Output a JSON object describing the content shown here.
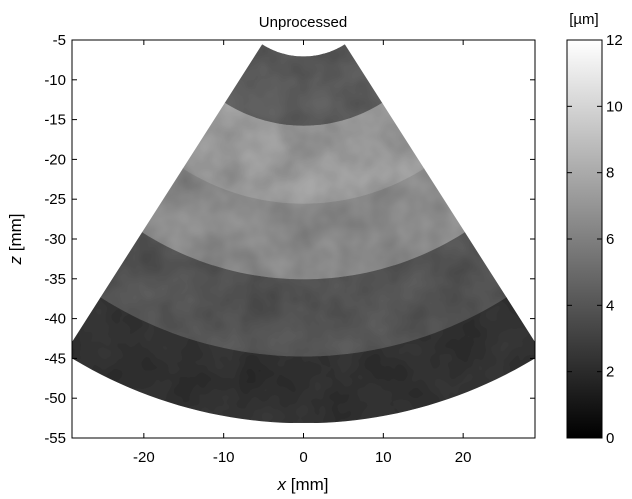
{
  "chart_data": {
    "type": "heatmap",
    "title": "Unprocessed",
    "xlabel_var": "x",
    "xlabel_unit": "[mm]",
    "ylabel_var": "z",
    "ylabel_unit": "[mm]",
    "xlim": [
      -29,
      29
    ],
    "ylim": [
      -55,
      -5
    ],
    "y_reversed": true,
    "x_ticks": [
      -20,
      -10,
      0,
      10,
      20
    ],
    "y_ticks": [
      -5,
      -10,
      -15,
      -20,
      -25,
      -30,
      -35,
      -40,
      -45,
      -50,
      -55
    ],
    "grid": false,
    "sector": {
      "apex_z": 2.5,
      "inner_radius": 9.6,
      "outer_radius": 55.6,
      "half_angle_deg": 32.5
    },
    "bands": [
      {
        "r_inner": 9.6,
        "r_outer": 18.3,
        "mean_value": 5.0
      },
      {
        "r_inner": 18.3,
        "r_outer": 28.1,
        "mean_value": 8.3
      },
      {
        "r_inner": 28.1,
        "r_outer": 37.6,
        "mean_value": 7.5
      },
      {
        "r_inner": 37.6,
        "r_outer": 47.3,
        "mean_value": 4.6
      },
      {
        "r_inner": 47.3,
        "r_outer": 55.6,
        "mean_value": 2.8
      }
    ],
    "colorbar": {
      "label": "[µm]",
      "colormap": "gray",
      "range": [
        0,
        12
      ],
      "ticks": [
        0,
        2,
        4,
        6,
        8,
        10,
        12
      ]
    }
  }
}
